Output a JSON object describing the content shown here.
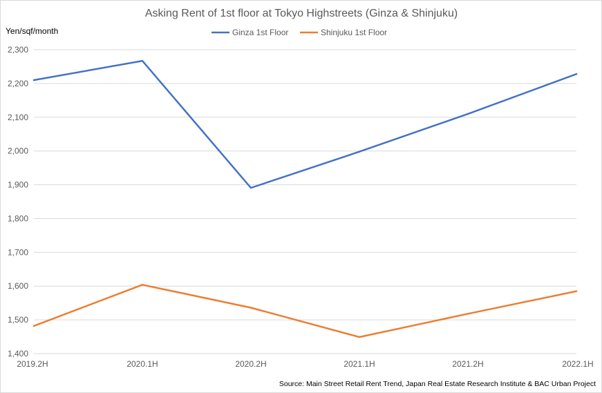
{
  "chart_data": {
    "type": "line",
    "title": "Asking Rent of 1st floor at Tokyo Highstreets (Ginza & Shinjuku)",
    "ylabel": "Yen/sqf/month",
    "xlabel": "",
    "categories": [
      "2019.2H",
      "2020.1H",
      "2020.2H",
      "2021.1H",
      "2021.2H",
      "2022.1H"
    ],
    "ylim": [
      1400,
      2300
    ],
    "yticks": [
      1400,
      1500,
      1600,
      1700,
      1800,
      1900,
      2000,
      2100,
      2200,
      2300
    ],
    "ytick_labels": [
      "1,400",
      "1,500",
      "1,600",
      "1,700",
      "1,800",
      "1,900",
      "2,000",
      "2,100",
      "2,200",
      "2,300"
    ],
    "grid": "horizontal",
    "legend_position": "top-center",
    "series": [
      {
        "name": "Ginza 1st Floor",
        "color": "#4472c4",
        "values": [
          2210,
          2267,
          1891,
          1998,
          2110,
          2228
        ]
      },
      {
        "name": "Shinjuku 1st Floor",
        "color": "#ed7d31",
        "values": [
          1482,
          1604,
          1536,
          1449,
          1518,
          1585
        ]
      }
    ],
    "source": "Source: Main Street Retail Rent Trend, Japan Real Estate Research Institute & BAC Urban Project"
  }
}
